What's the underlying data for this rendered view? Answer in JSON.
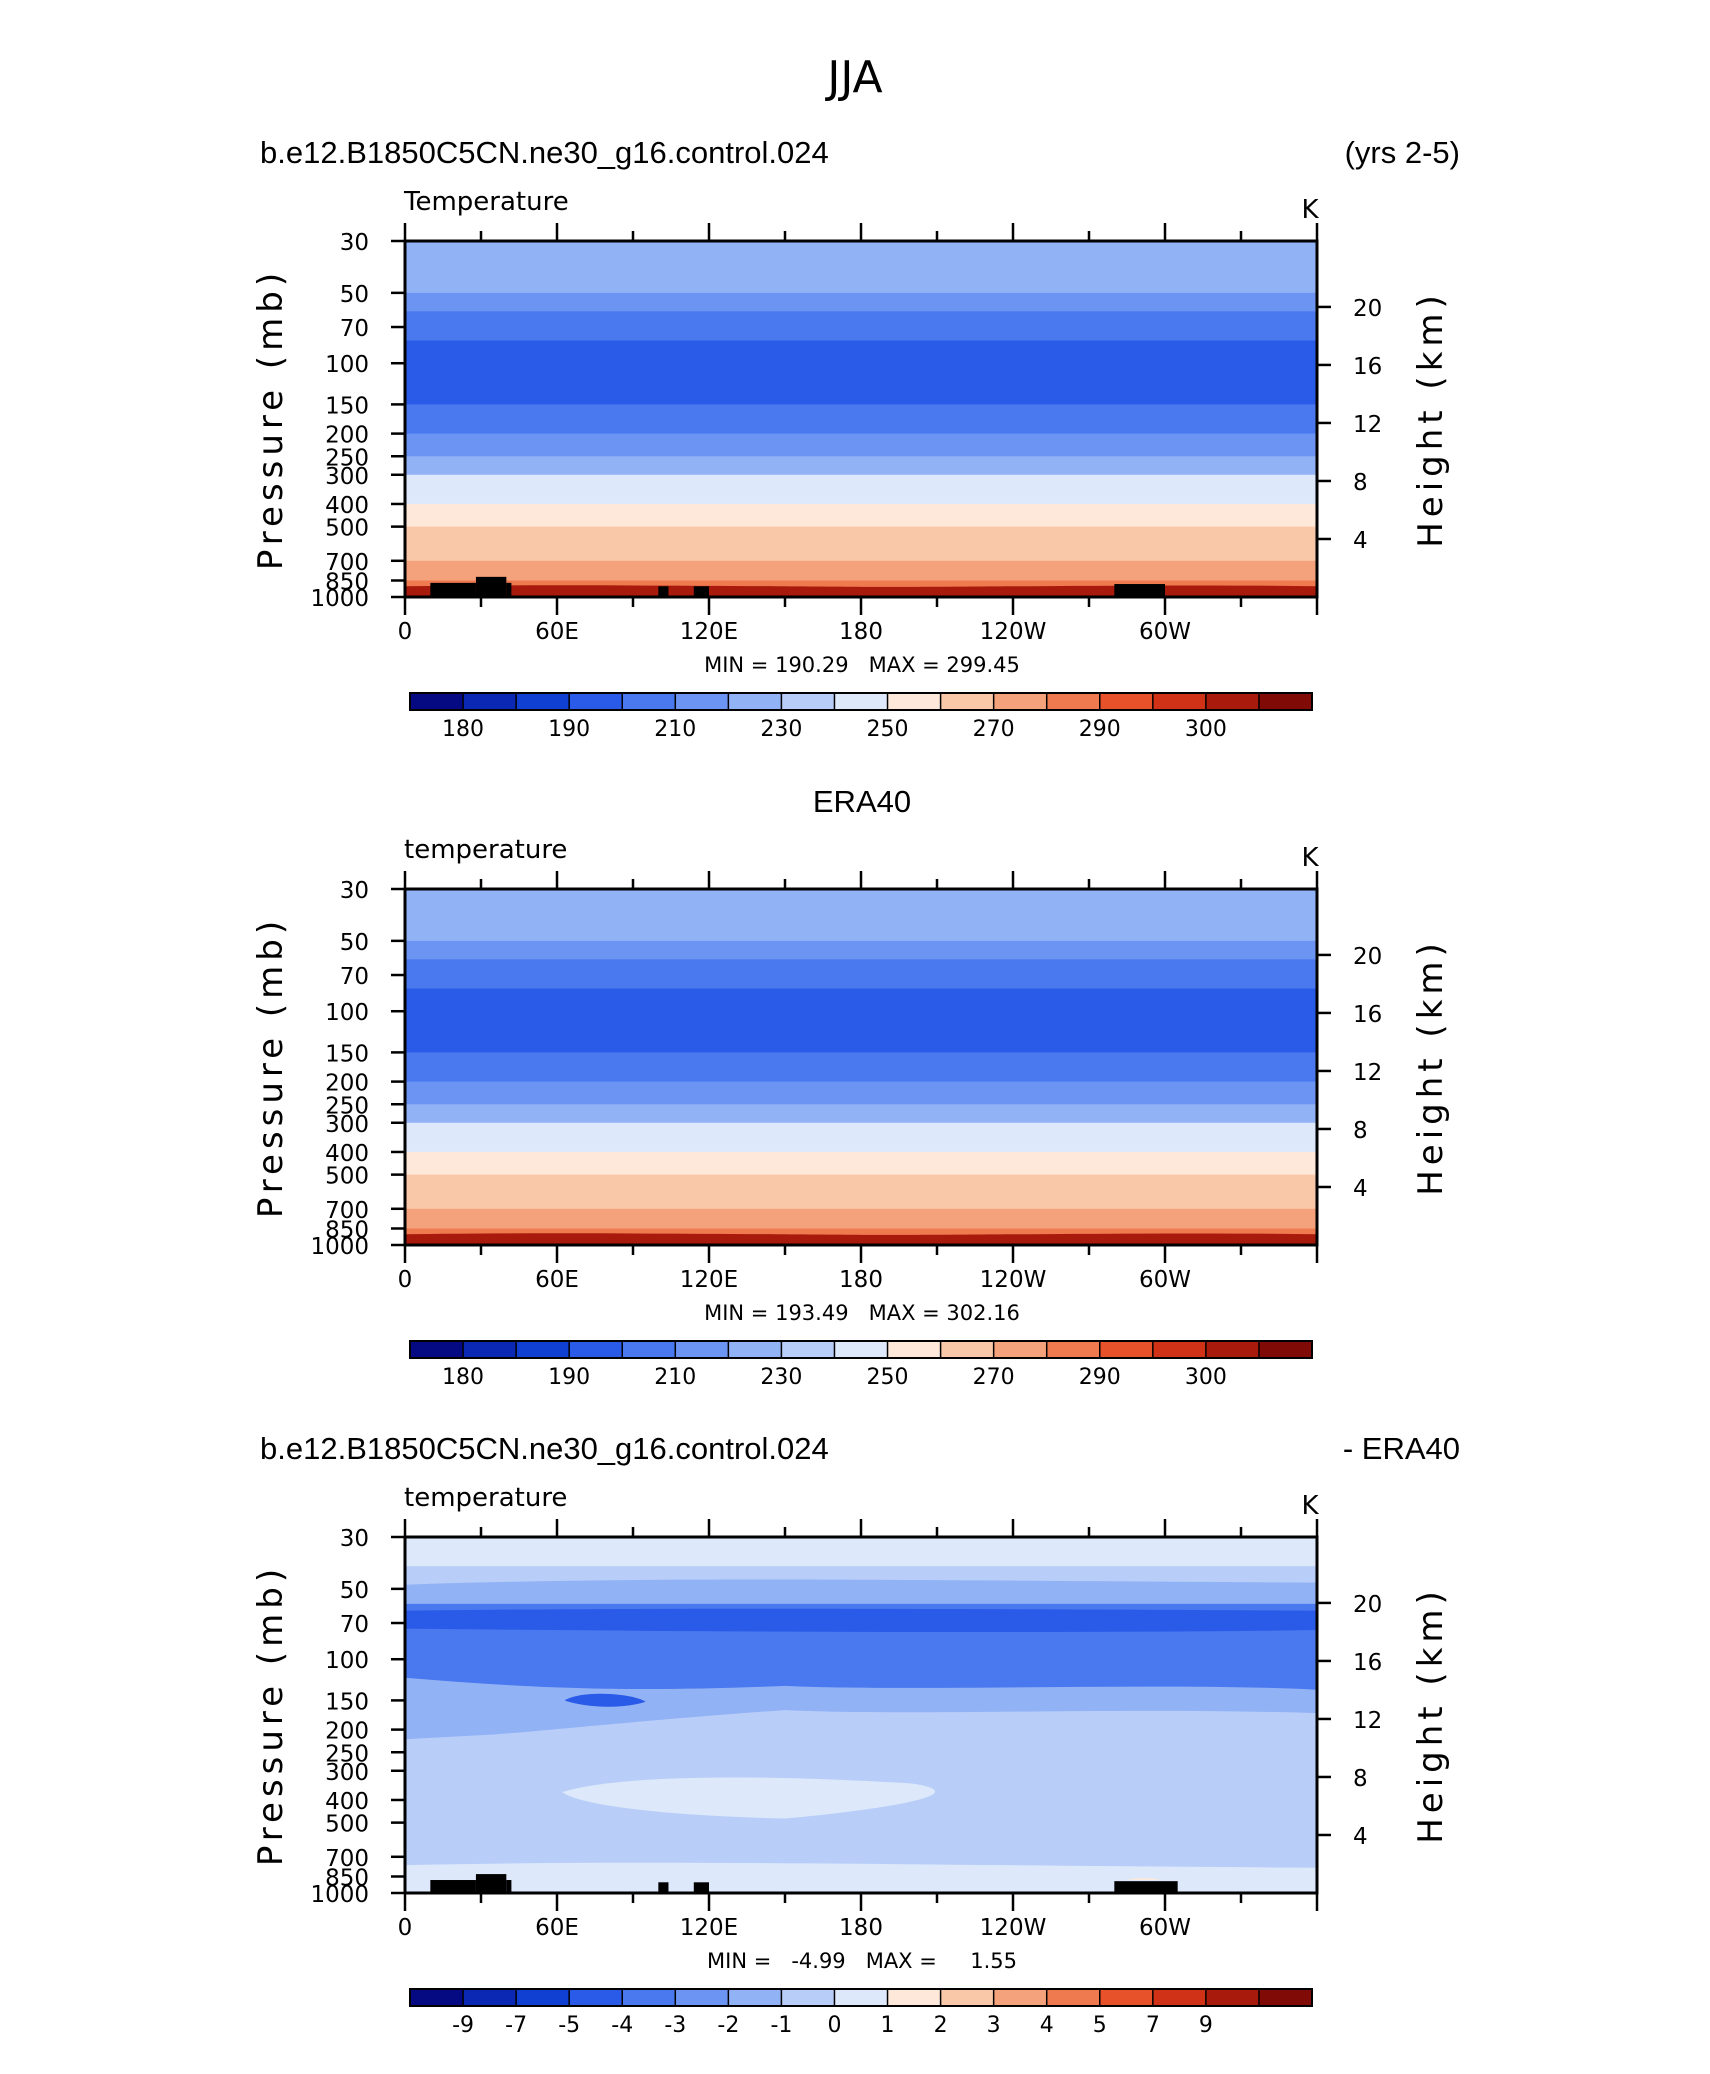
{
  "figure_title": "JJA",
  "colors": {
    "abs_palette": [
      "#050a82",
      "#0a28b4",
      "#1040d2",
      "#2a5ae8",
      "#4a78ee",
      "#6c94f2",
      "#92b2f6",
      "#b8cef8",
      "#dde9fb",
      "#fde8da",
      "#f9c8a8",
      "#f4a27c",
      "#ef7a50",
      "#e8522a",
      "#cf3216",
      "#a81a0c",
      "#800a06"
    ],
    "diff_palette": [
      "#050a82",
      "#0a28b4",
      "#1040d2",
      "#2a5ae8",
      "#4a78ee",
      "#6c94f2",
      "#92b2f6",
      "#b8cef8",
      "#dde9fb",
      "#fde8da",
      "#f9c8a8",
      "#f4a27c",
      "#ef7a50",
      "#e8522a",
      "#cf3216",
      "#a81a0c",
      "#800a06"
    ],
    "topography": "#000000"
  },
  "chart_data": [
    {
      "type": "heatmap",
      "header_left": "b.e12.B1850C5CN.ne30_g16.control.024",
      "header_right": "(yrs 2-5)",
      "header_center": "",
      "title": "Temperature",
      "units": "K",
      "ylabel": "Pressure (mb)",
      "ylabel_right": "Height (km)",
      "y_scale": "log",
      "ylim": [
        1000,
        30
      ],
      "yticks": [
        "30",
        "50",
        "70",
        "100",
        "150",
        "200",
        "250",
        "300",
        "400",
        "500",
        "700",
        "850",
        "1000"
      ],
      "ytick_values": [
        30,
        50,
        70,
        100,
        150,
        200,
        250,
        300,
        400,
        500,
        700,
        850,
        1000
      ],
      "y2ticks": [
        "20",
        "16",
        "12",
        "8",
        "4"
      ],
      "y2tick_values": [
        20,
        16,
        12,
        8,
        4
      ],
      "xlim": [
        0,
        360
      ],
      "xticks": [
        "0",
        "60E",
        "120E",
        "180",
        "120W",
        "60W"
      ],
      "xtick_values": [
        0,
        60,
        120,
        180,
        240,
        300
      ],
      "stats": "MIN = 190.29   MAX = 299.45",
      "min": 190.29,
      "max": 299.45,
      "colorbar_ticks": [
        "180",
        "190",
        "210",
        "230",
        "250",
        "270",
        "290",
        "300"
      ],
      "colorbar_tick_positions": [
        1,
        3,
        5,
        7,
        9,
        11,
        13,
        15
      ],
      "topography": [
        [
          10,
          28,
          870
        ],
        [
          28,
          40,
          820
        ],
        [
          40,
          42,
          870
        ],
        [
          100,
          104,
          900
        ],
        [
          114,
          120,
          900
        ],
        [
          280,
          300,
          880
        ]
      ],
      "profile": {
        "pressure": [
          30,
          50,
          60,
          80,
          100,
          150,
          200,
          250,
          300,
          400,
          500,
          700,
          850,
          1000
        ],
        "bands_index": [
          6,
          5,
          4,
          3,
          3,
          4,
          5,
          6,
          8,
          9,
          10,
          11,
          12,
          13
        ]
      }
    },
    {
      "type": "heatmap",
      "header_left": "",
      "header_right": "",
      "header_center": "ERA40",
      "title": "temperature",
      "units": "K",
      "ylabel": "Pressure (mb)",
      "ylabel_right": "Height (km)",
      "y_scale": "log",
      "ylim": [
        1000,
        30
      ],
      "yticks": [
        "30",
        "50",
        "70",
        "100",
        "150",
        "200",
        "250",
        "300",
        "400",
        "500",
        "700",
        "850",
        "1000"
      ],
      "ytick_values": [
        30,
        50,
        70,
        100,
        150,
        200,
        250,
        300,
        400,
        500,
        700,
        850,
        1000
      ],
      "y2ticks": [
        "20",
        "16",
        "12",
        "8",
        "4"
      ],
      "y2tick_values": [
        20,
        16,
        12,
        8,
        4
      ],
      "xlim": [
        0,
        360
      ],
      "xticks": [
        "0",
        "60E",
        "120E",
        "180",
        "120W",
        "60W"
      ],
      "xtick_values": [
        0,
        60,
        120,
        180,
        240,
        300
      ],
      "stats": "MIN = 193.49   MAX = 302.16",
      "min": 193.49,
      "max": 302.16,
      "colorbar_ticks": [
        "180",
        "190",
        "210",
        "230",
        "250",
        "270",
        "290",
        "300"
      ],
      "colorbar_tick_positions": [
        1,
        3,
        5,
        7,
        9,
        11,
        13,
        15
      ],
      "topography": []
    },
    {
      "type": "heatmap",
      "header_left": "b.e12.B1850C5CN.ne30_g16.control.024",
      "header_right": "- ERA40",
      "header_center": "",
      "title": "temperature",
      "units": "K",
      "ylabel": "Pressure (mb)",
      "ylabel_right": "Height (km)",
      "y_scale": "log",
      "ylim": [
        1000,
        30
      ],
      "yticks": [
        "30",
        "50",
        "70",
        "100",
        "150",
        "200",
        "250",
        "300",
        "400",
        "500",
        "700",
        "850",
        "1000"
      ],
      "ytick_values": [
        30,
        50,
        70,
        100,
        150,
        200,
        250,
        300,
        400,
        500,
        700,
        850,
        1000
      ],
      "y2ticks": [
        "20",
        "16",
        "12",
        "8",
        "4"
      ],
      "y2tick_values": [
        20,
        16,
        12,
        8,
        4
      ],
      "xlim": [
        0,
        360
      ],
      "xticks": [
        "0",
        "60E",
        "120E",
        "180",
        "120W",
        "60W"
      ],
      "xtick_values": [
        0,
        60,
        120,
        180,
        240,
        300
      ],
      "stats": "MIN =   -4.99   MAX =     1.55",
      "min": -4.99,
      "max": 1.55,
      "colorbar_ticks": [
        "-9",
        "-7",
        "-5",
        "-4",
        "-3",
        "-2",
        "-1",
        "0",
        "1",
        "2",
        "3",
        "4",
        "5",
        "7",
        "9"
      ],
      "colorbar_tick_positions": [
        1,
        2,
        3,
        4,
        5,
        6,
        7,
        8,
        9,
        10,
        11,
        12,
        13,
        14,
        15
      ],
      "topography": [
        [
          10,
          28,
          880
        ],
        [
          28,
          40,
          830
        ],
        [
          40,
          42,
          880
        ],
        [
          100,
          104,
          900
        ],
        [
          114,
          120,
          900
        ],
        [
          280,
          305,
          890
        ]
      ]
    }
  ]
}
